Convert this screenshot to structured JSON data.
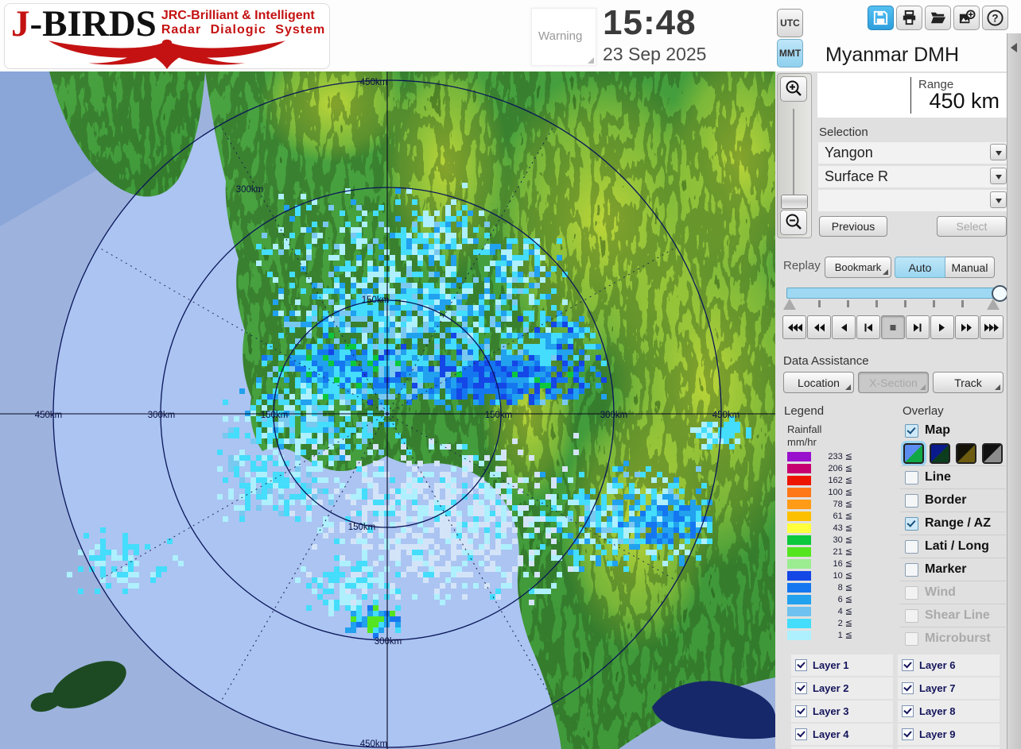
{
  "header": {
    "brand": {
      "first_letter": "J",
      "rest": "-BIRDS",
      "subtitle1": "JRC-Brilliant & Intelligent",
      "subtitle2": "Radar  Dialogic  System"
    },
    "warning_label": "Warning",
    "time": "15:48",
    "date": "23 Sep 2025",
    "utc_label": "UTC",
    "mmt_label": "MMT",
    "toolbar_icons": [
      "save-icon",
      "print-icon",
      "open-folder-icon",
      "export-image-icon",
      "help-icon"
    ],
    "help_glyph": "?",
    "station": "Myanmar DMH"
  },
  "range": {
    "label": "Range",
    "value": "450 km"
  },
  "selection": {
    "label": "Selection",
    "dropdowns": [
      "Yangon",
      "Surface R",
      ""
    ],
    "previous_label": "Previous",
    "select_label": "Select"
  },
  "replay": {
    "label": "Replay",
    "bookmark_label": "Bookmark",
    "auto_label": "Auto",
    "manual_label": "Manual",
    "playback_icons": [
      "rewind-fast-icon",
      "rewind-icon",
      "step-back-icon",
      "to-start-icon",
      "stop-icon",
      "to-end-icon",
      "play-icon",
      "forward-icon",
      "forward-fast-icon"
    ],
    "stop_pressed": true
  },
  "data_assistance": {
    "label": "Data Assistance",
    "buttons": [
      {
        "label": "Location",
        "enabled": true
      },
      {
        "label": "X-Section",
        "enabled": false
      },
      {
        "label": "Track",
        "enabled": true
      }
    ]
  },
  "legend": {
    "title": "Legend",
    "quantity": "Rainfall",
    "unit": "mm/hr",
    "entries": [
      {
        "label": "233 ≦",
        "color": "#9911cc"
      },
      {
        "label": "206 ≦",
        "color": "#c7006f"
      },
      {
        "label": "162 ≦",
        "color": "#ee1500"
      },
      {
        "label": "100 ≦",
        "color": "#ff7716"
      },
      {
        "label": "78 ≦",
        "color": "#ff9b16"
      },
      {
        "label": "61 ≦",
        "color": "#fcc000"
      },
      {
        "label": "43 ≦",
        "color": "#ffff3e"
      },
      {
        "label": "30 ≦",
        "color": "#0cc83c"
      },
      {
        "label": "21 ≦",
        "color": "#55e520"
      },
      {
        "label": "16 ≦",
        "color": "#9cec92"
      },
      {
        "label": "10 ≦",
        "color": "#1546e6"
      },
      {
        "label": "8 ≦",
        "color": "#1577f0"
      },
      {
        "label": "6 ≦",
        "color": "#21a1ee"
      },
      {
        "label": "4 ≦",
        "color": "#6fc2ef"
      },
      {
        "label": "2 ≦",
        "color": "#44ddfb"
      },
      {
        "label": "1 ≦",
        "color": "#aef0fd"
      }
    ]
  },
  "overlay": {
    "title": "Overlay",
    "items": [
      {
        "label": "Map",
        "checked": true,
        "enabled": true,
        "has_styles": true
      },
      {
        "label": "Line",
        "checked": false,
        "enabled": true
      },
      {
        "label": "Border",
        "checked": false,
        "enabled": true
      },
      {
        "label": "Range / AZ",
        "checked": true,
        "enabled": true
      },
      {
        "label": "Lati / Long",
        "checked": false,
        "enabled": true
      },
      {
        "label": "Marker",
        "checked": false,
        "enabled": true
      },
      {
        "label": "Wind",
        "checked": false,
        "enabled": false
      },
      {
        "label": "Shear Line",
        "checked": false,
        "enabled": false
      },
      {
        "label": "Microburst",
        "checked": false,
        "enabled": false
      }
    ],
    "map_styles": [
      {
        "top": "#5b8cf0",
        "bottom": "#0fa845",
        "selected": true
      },
      {
        "top": "#0a1a8c",
        "bottom": "#0c3d1e",
        "selected": false
      },
      {
        "top": "#151208",
        "bottom": "#6d5c10",
        "selected": false
      },
      {
        "top": "#111111",
        "bottom": "#8c8c8c",
        "selected": false
      }
    ]
  },
  "layers": {
    "left": [
      "Layer 1",
      "Layer 2",
      "Layer 3",
      "Layer 4"
    ],
    "right": [
      "Layer 6",
      "Layer 7",
      "Layer 8",
      "Layer 9"
    ],
    "all_checked": true
  },
  "map": {
    "ring_labels": [
      "450km",
      "300km",
      "150km",
      "450km",
      "300km",
      "150km",
      "150km",
      "300km",
      "450km",
      "150km",
      "300km",
      "450km"
    ]
  }
}
